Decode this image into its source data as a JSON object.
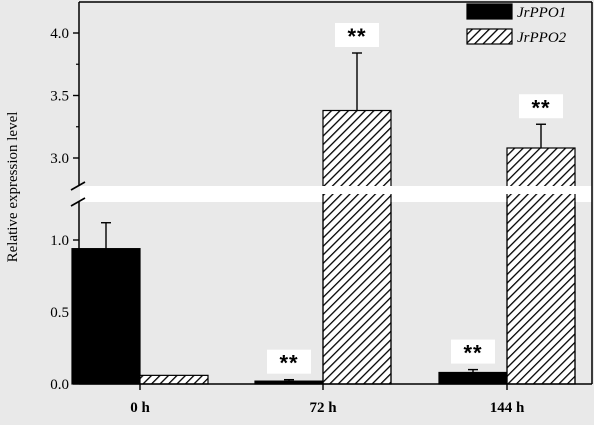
{
  "chart_data": {
    "type": "bar",
    "ylabel": "Relative expression level",
    "xlabel": "",
    "categories": [
      "0 h",
      "72 h",
      "144 h"
    ],
    "series": [
      {
        "name": "JrPPO1",
        "values": [
          0.94,
          0.02,
          0.08
        ],
        "errors": [
          0.18,
          0.01,
          0.02
        ],
        "significance": [
          "",
          "**",
          "**"
        ],
        "pattern": "solid",
        "color": "#000000"
      },
      {
        "name": "JrPPO2",
        "values": [
          0.06,
          3.38,
          3.08
        ],
        "errors": [
          0.0,
          0.46,
          0.19
        ],
        "significance": [
          "",
          "**",
          "**"
        ],
        "pattern": "hatched",
        "color": "#000000"
      }
    ],
    "y_axis_break": {
      "lower_range": [
        0,
        1.25
      ],
      "upper_range": [
        2.75,
        4.2
      ]
    },
    "y_ticks_lower": [
      "0.0",
      "0.5",
      "1.0"
    ],
    "y_ticks_upper": [
      "3.0",
      "3.5",
      "4.0"
    ],
    "legend_position": "top-right",
    "grid": false,
    "background": "#e9e9e9"
  }
}
